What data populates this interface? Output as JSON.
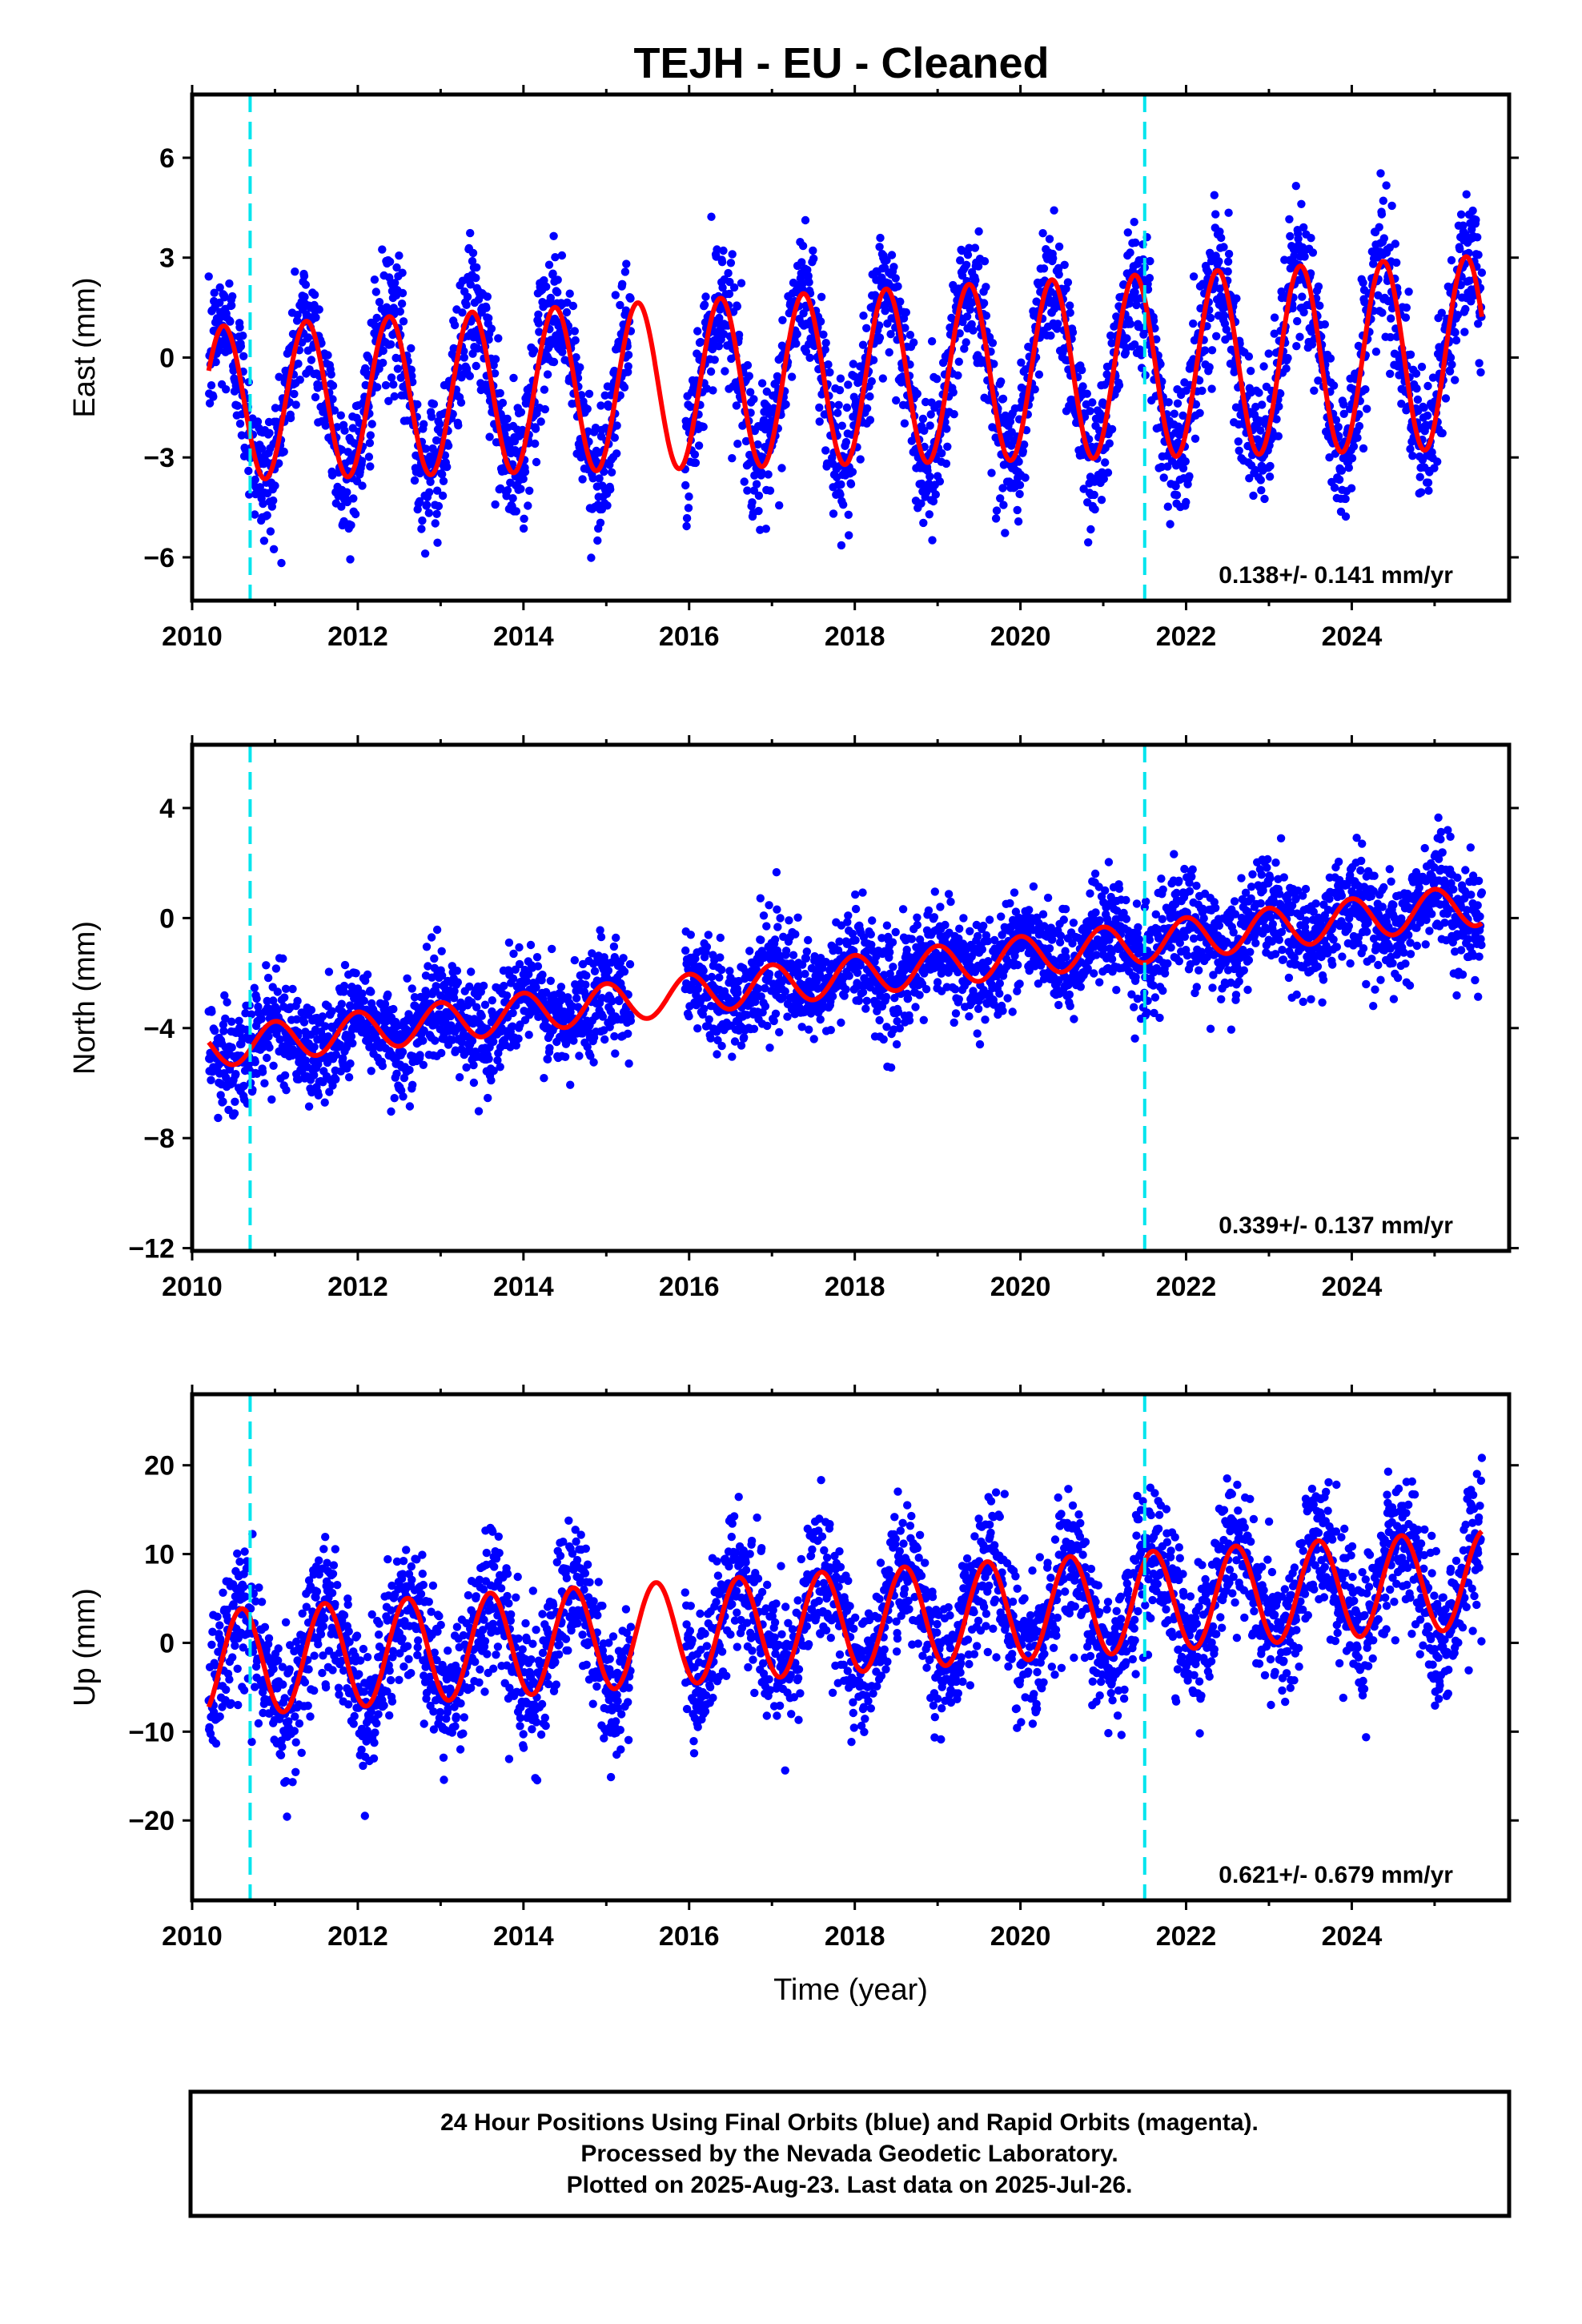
{
  "title": "TEJH  - EU - Cleaned",
  "colors": {
    "data": "#0000ff",
    "model": "#ff0000",
    "event": "#00e5ee"
  },
  "event_lines_x": [
    2010.7,
    2021.5
  ],
  "chart_data": [
    {
      "type": "scatter",
      "panel": "east",
      "ylabel": "East (mm)",
      "xlabel": "",
      "xlim": [
        2010,
        2025.9
      ],
      "ylim": [
        -7.3,
        7.9
      ],
      "x_ticks": [
        "2010",
        "2012",
        "2014",
        "2016",
        "2018",
        "2020",
        "2022",
        "2024"
      ],
      "y_ticks": [
        -6,
        -3,
        0,
        3,
        6
      ],
      "y_tick_labels": [
        "−6",
        "−3",
        "0",
        "3",
        "6"
      ],
      "rate_text": "0.138+/- 0.141 mm/yr",
      "model": {
        "offset": -1.4,
        "trend": 0.1,
        "amp_start": 2.3,
        "amp_end": 2.9,
        "phase_peak": 0.38
      },
      "noise_sd": 1.2,
      "n_points": 3400
    },
    {
      "type": "scatter",
      "panel": "north",
      "ylabel": "North (mm)",
      "xlabel": "",
      "xlim": [
        2010,
        2025.9
      ],
      "ylim": [
        -12.1,
        6.3
      ],
      "x_ticks": [
        "2010",
        "2012",
        "2014",
        "2016",
        "2018",
        "2020",
        "2022",
        "2024"
      ],
      "y_ticks": [
        -12,
        -8,
        -4,
        0,
        4
      ],
      "y_tick_labels": [
        "−12",
        "−8",
        "−4",
        "0",
        "4"
      ],
      "rate_text": "0.339+/- 0.137 mm/yr",
      "model": {
        "offset": -4.8,
        "trend": 0.34,
        "amp_start": 0.7,
        "amp_end": 0.75,
        "phase_peak": 0.0
      },
      "noise_sd": 1.1,
      "n_points": 3400
    },
    {
      "type": "scatter",
      "panel": "up",
      "ylabel": "Up (mm)",
      "xlabel": "Time (year)",
      "xlim": [
        2010,
        2025.9
      ],
      "ylim": [
        -29,
        28
      ],
      "x_ticks": [
        "2010",
        "2012",
        "2014",
        "2016",
        "2018",
        "2020",
        "2022",
        "2024"
      ],
      "y_ticks": [
        -20,
        -10,
        0,
        10,
        20
      ],
      "y_tick_labels": [
        "−20",
        "−10",
        "0",
        "10",
        "20"
      ],
      "rate_text": "0.621+/- 0.679 mm/yr",
      "model": {
        "offset": -2.5,
        "trend": 0.62,
        "amp_start": 6.0,
        "amp_end": 5.5,
        "phase_peak": 0.6
      },
      "noise_sd": 4.5,
      "n_points": 3400
    }
  ],
  "footer": {
    "line1": "24 Hour Positions Using Final Orbits (blue) and Rapid Orbits (magenta).",
    "line2": "Processed by the Nevada Geodetic Laboratory.",
    "line3": "Plotted on 2025-Aug-23. Last data on 2025-Jul-26."
  }
}
